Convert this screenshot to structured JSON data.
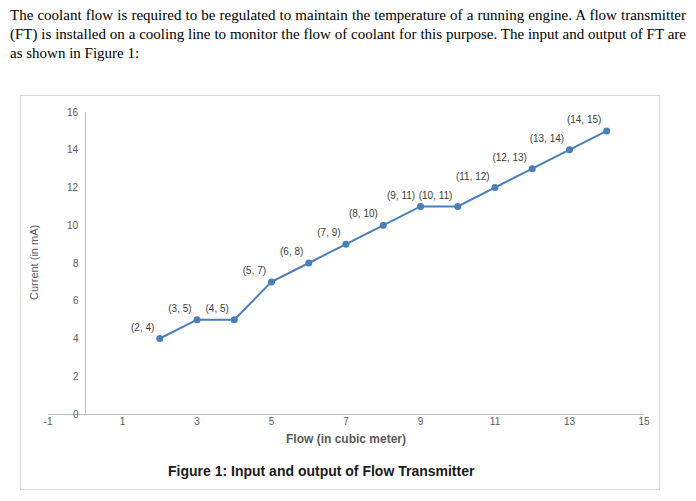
{
  "paragraph": "The coolant flow is required to be regulated to maintain the temperature of a running engine. A flow transmitter (FT) is installed on a cooling line to monitor the flow of coolant for this purpose. The input and output of FT are as shown in Figure 1:",
  "chart_data": {
    "type": "line",
    "title": "Figure 1: Input and output of Flow Transmitter",
    "x_label": "Flow (in cubic meter)",
    "y_label": "Current (in mA)",
    "x": [
      2,
      3,
      4,
      5,
      6,
      7,
      8,
      9,
      10,
      11,
      12,
      13,
      14
    ],
    "values": [
      4,
      5,
      5,
      7,
      8,
      9,
      10,
      11,
      11,
      12,
      13,
      14,
      15
    ],
    "value_labels": [
      "(2, 4)",
      "(3, 5)",
      "(4, 5)",
      "(5, 7)",
      "(6, 8)",
      "(7, 9)",
      "(8, 10)",
      "(9, 11)",
      "(10, 11)",
      "(11, 12)",
      "(12, 13)",
      "(13, 14)",
      "(14, 15)"
    ],
    "data_labels": true,
    "color": "#4a7ebb",
    "marker": "circle",
    "line_style": "solid",
    "xlim": [
      -1,
      15
    ],
    "xticks": [
      -1,
      1,
      3,
      5,
      7,
      9,
      11,
      13,
      15
    ],
    "ylim": [
      0,
      16
    ],
    "yticks": [
      0,
      2,
      4,
      6,
      8,
      10,
      12,
      14,
      16
    ],
    "grid": false
  }
}
